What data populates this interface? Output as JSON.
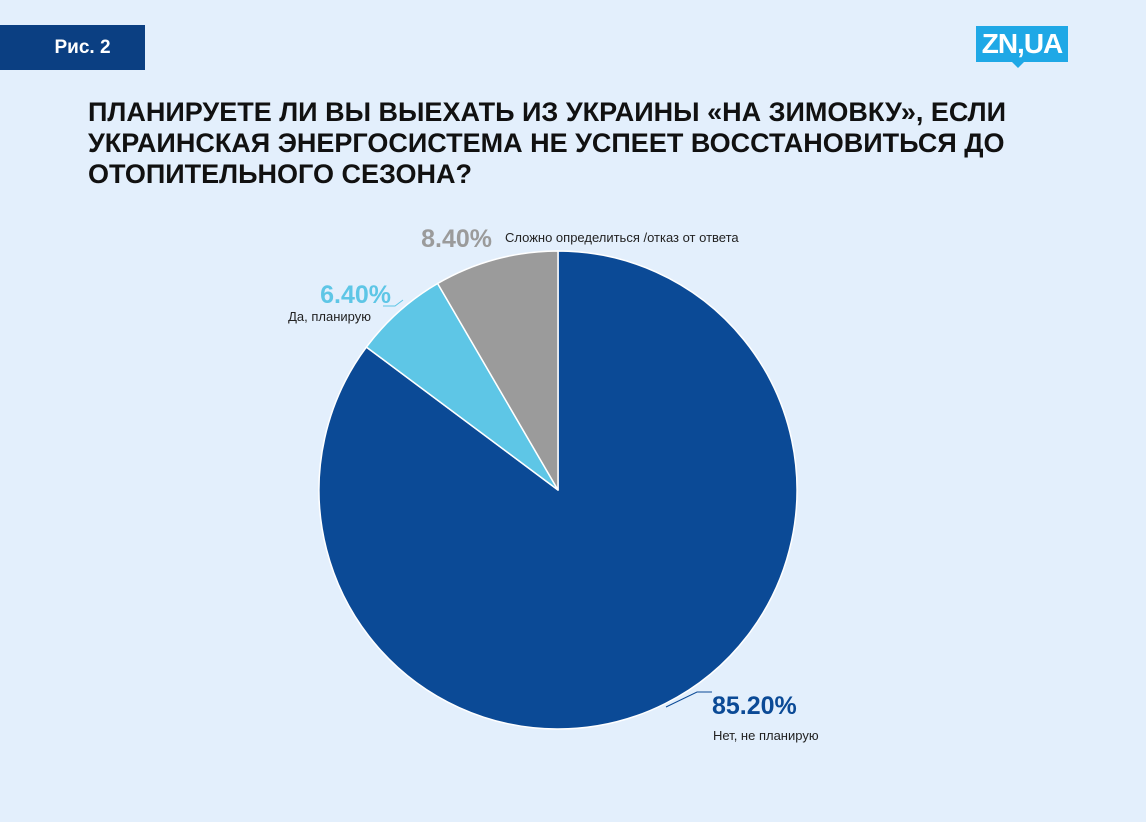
{
  "figure_label": "Рис. 2",
  "logo_text": "ZN,UA",
  "colors": {
    "background": "#e3effc",
    "accent_dark": "#0b3f82",
    "logo_blue": "#1fa8e6"
  },
  "chart_data": {
    "type": "pie",
    "title": "ПЛАНИРУЕТЕ ЛИ ВЫ ВЫЕХАТЬ ИЗ УКРАИНЫ «НА ЗИМОВКУ», ЕСЛИ УКРАИНСКАЯ ЭНЕРГОСИСТЕМА НЕ УСПЕЕТ ВОССТАНОВИТЬСЯ ДО ОТОПИТЕЛЬНОГО СЕЗОНА?",
    "slices": [
      {
        "label": "Нет, не планирую",
        "value": 85.2,
        "display": "85.20%",
        "color": "#0b4a96",
        "label_color": "#0b4a96"
      },
      {
        "label": "Да, планирую",
        "value": 6.4,
        "display": "6.40%",
        "color": "#5ec6e6",
        "label_color": "#5ec6e6"
      },
      {
        "label": "Сложно определиться /отказ от ответа",
        "value": 8.4,
        "display": "8.40%",
        "color": "#9b9b9b",
        "label_color": "#9b9b9b"
      }
    ]
  }
}
